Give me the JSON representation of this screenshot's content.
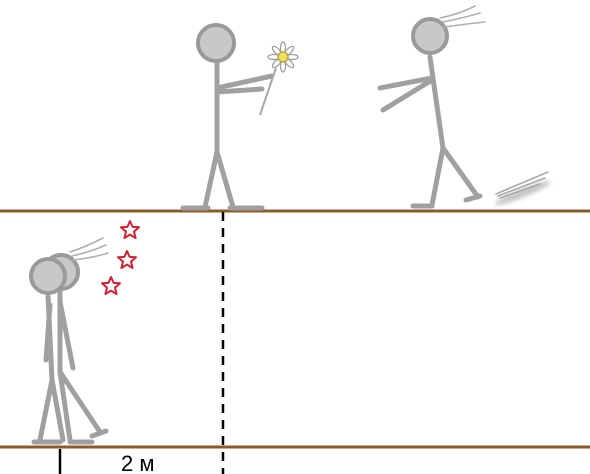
{
  "distance_label": "2 м",
  "colors": {
    "ground": "#8b5a2b",
    "figure": "#a0a0a0",
    "figure_head_fill": "#c8c8c8",
    "figure_head_stroke": "#9a9a9a",
    "star": "#cc2233",
    "flower_center": "#f0e060",
    "marker": "#000000"
  },
  "icons": {
    "flower": "daisy-flower-icon",
    "star": "dizzy-star-icon",
    "motion_lines": "speed-lines-icon"
  }
}
